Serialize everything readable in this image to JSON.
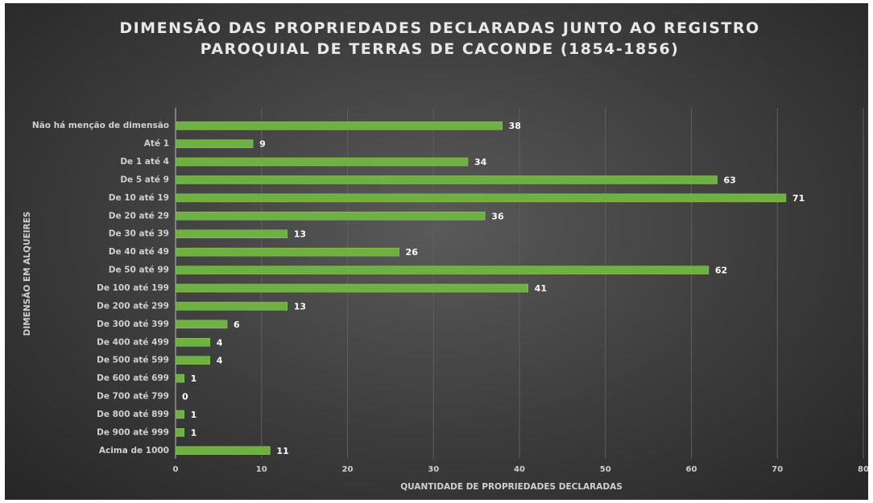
{
  "chart_data": {
    "type": "bar",
    "orientation": "horizontal",
    "title": "DIMENSÃO DAS PROPRIEDADES DECLARADAS JUNTO AO REGISTRO PAROQUIAL DE TERRAS DE CACONDE (1854-1856)",
    "x_label": "QUANTIDADE DE PROPRIEDADES DECLARADAS",
    "y_label": "DIMENSÃO EM ALQUEIRES",
    "categories": [
      "Não há menção de dimensão",
      "Até 1",
      "De 1 até 4",
      "De 5 até 9",
      "De 10 até 19",
      "De 20 até 29",
      "De 30 até 39",
      "De 40 até 49",
      "De 50 até 99",
      "De 100 até 199",
      "De 200 até 299",
      "De 300 até 399",
      "De 400 até 499",
      "De 500 até 599",
      "De 600 até 699",
      "De 700 até 799",
      "De 800 até 899",
      "De 900 até 999",
      "Acima de 1000"
    ],
    "values": [
      38,
      9,
      34,
      63,
      71,
      36,
      13,
      26,
      62,
      41,
      13,
      6,
      4,
      4,
      1,
      0,
      1,
      1,
      11
    ],
    "color": "#6fb043",
    "xlim": [
      0,
      80
    ],
    "xticks": [
      0,
      10,
      20,
      30,
      40,
      50,
      60,
      70,
      80
    ],
    "grid": true
  }
}
